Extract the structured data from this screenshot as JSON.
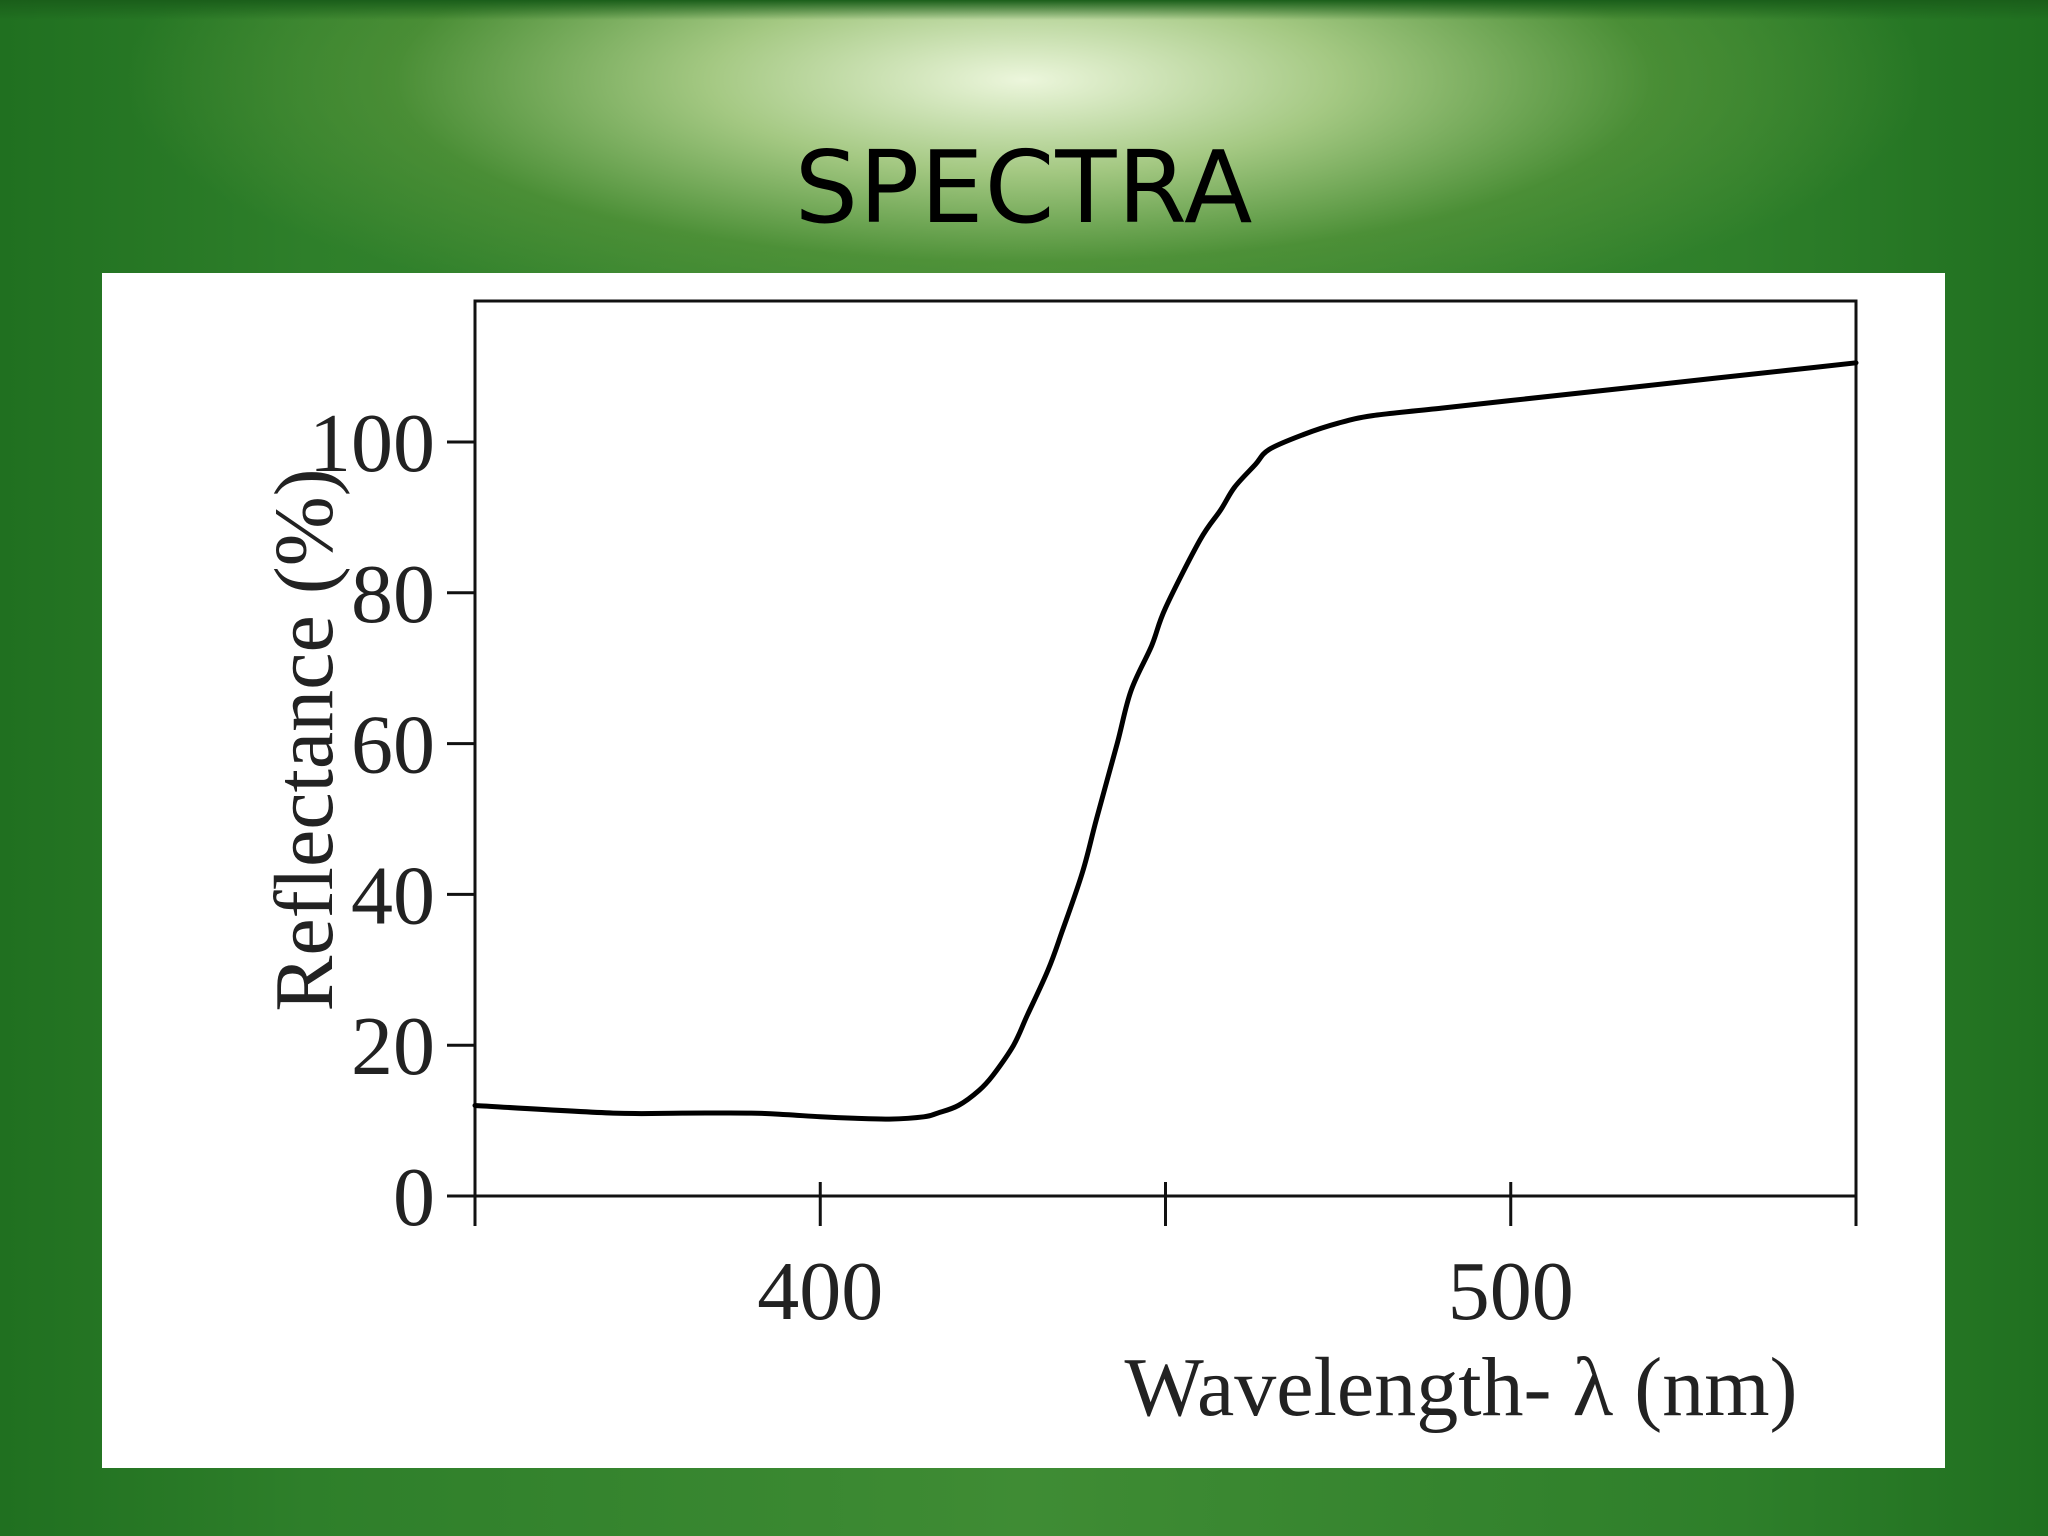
{
  "slide": {
    "title": "SPECTRA"
  },
  "chart_data": {
    "type": "line",
    "title": "",
    "xlabel": "Wavelength- λ (nm)",
    "ylabel": "Reflectance (%)",
    "xlim": [
      350,
      550
    ],
    "ylim": [
      0,
      119
    ],
    "x_ticks": [
      350,
      400,
      450,
      500,
      550
    ],
    "x_tick_labels": [
      "",
      "400",
      "",
      "500",
      ""
    ],
    "y_ticks": [
      0,
      20,
      40,
      60,
      80,
      100
    ],
    "y_tick_labels": [
      "0",
      "20",
      "40",
      "60",
      "80",
      "100"
    ],
    "grid": false,
    "legend": "none",
    "line_color": "#000000",
    "series": [
      {
        "x": [
          350,
          370,
          380,
          390,
          395,
          400,
          405,
          410,
          415,
          417,
          420,
          423,
          425,
          428,
          430,
          433,
          435,
          438,
          440,
          443,
          445,
          448,
          450,
          455,
          458,
          460,
          463,
          465,
          470,
          475,
          480,
          490,
          500,
          510,
          520,
          530,
          540,
          550
        ],
        "y": [
          12,
          11,
          11,
          11,
          10.8,
          10.5,
          10.3,
          10.2,
          10.5,
          11,
          12,
          14,
          16,
          20,
          24,
          30,
          35,
          43,
          50,
          60,
          67,
          73,
          78,
          87,
          91,
          94,
          97,
          99,
          101,
          102.5,
          103.5,
          104.5,
          105.5,
          106.5,
          107.5,
          108.5,
          109.5,
          110.5
        ]
      }
    ]
  }
}
